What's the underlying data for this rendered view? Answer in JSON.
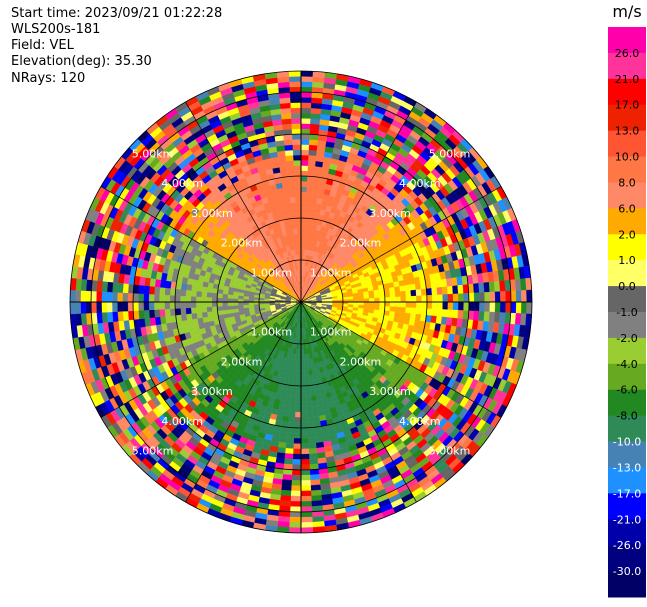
{
  "header": {
    "start_time": "Start time: 2023/09/21 01:22:28",
    "instrument": "WLS200s-181",
    "field": "Field: VEL",
    "elevation": "Elevation(deg): 35.30",
    "nrays": "NRays: 120"
  },
  "chart_data": {
    "type": "heatmap",
    "projection": "polar-ppi",
    "field": "VEL",
    "units_label": "m/s",
    "n_rays": 120,
    "range_ring_labels": [
      "1.00km",
      "2.00km",
      "3.00km",
      "4.00km",
      "5.00km"
    ],
    "range_rings_km": [
      1,
      2,
      3,
      4,
      5
    ],
    "max_range_km": 5.5,
    "colorbar": {
      "tick_labels": [
        "26.0",
        "21.0",
        "17.0",
        "13.0",
        "10.0",
        "8.0",
        "6.0",
        "2.0",
        "1.0",
        "0.0",
        "-1.0",
        "-2.0",
        "-4.0",
        "-6.0",
        "-8.0",
        "-10.0",
        "-13.0",
        "-17.0",
        "-21.0",
        "-26.0",
        "-30.0"
      ],
      "colors": [
        "#ff00aa",
        "#ff3399",
        "#ff0000",
        "#ee2200",
        "#ff5533",
        "#ff7744",
        "#ff8866",
        "#ffaa00",
        "#ffff00",
        "#ffff66",
        "#666666",
        "#808080",
        "#9acd32",
        "#66aa22",
        "#228822",
        "#2e8b57",
        "#4682b4",
        "#1e90ff",
        "#0000ff",
        "#0000aa",
        "#000080",
        "#000066"
      ]
    },
    "regions": [
      {
        "description": "near-range north sector",
        "approx_value": 8.0
      },
      {
        "description": "mid-range north ring",
        "approx_value": 6.0
      },
      {
        "description": "east/northeast",
        "approx_value": 2.0
      },
      {
        "description": "near-range south",
        "approx_value": -8.0
      },
      {
        "description": "mid-range south",
        "approx_value": -6.0
      },
      {
        "description": "west",
        "approx_value": -2.0
      },
      {
        "description": "outer ring",
        "approx_value": "noise"
      }
    ]
  }
}
